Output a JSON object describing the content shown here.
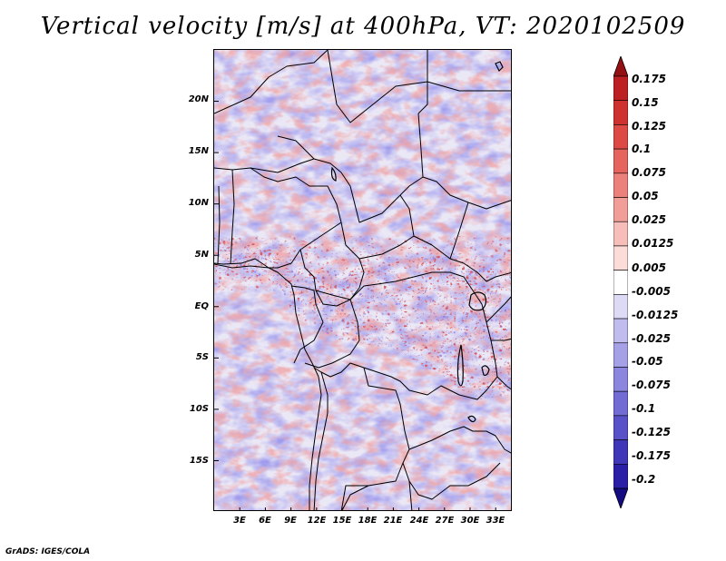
{
  "title": "Vertical velocity [m/s] at 400hPa, VT: 2020102509",
  "credit": "GrADS: IGES/COLA",
  "map": {
    "lon_range": [
      0,
      35
    ],
    "lat_range": [
      -20,
      25
    ],
    "lat_ticks": [
      "20N",
      "15N",
      "10N",
      "5N",
      "EQ",
      "5S",
      "10S",
      "15S"
    ],
    "lat_tick_values": [
      20,
      15,
      10,
      5,
      0,
      -5,
      -10,
      -15
    ],
    "lon_ticks": [
      "3E",
      "6E",
      "9E",
      "12E",
      "15E",
      "18E",
      "21E",
      "24E",
      "27E",
      "30E",
      "33E"
    ],
    "lon_tick_values": [
      3,
      6,
      9,
      12,
      15,
      18,
      21,
      24,
      27,
      30,
      33
    ]
  },
  "colorbar": {
    "labels": [
      "0.175",
      "0.15",
      "0.125",
      "0.1",
      "0.075",
      "0.05",
      "0.025",
      "0.0125",
      "0.005",
      "-0.005",
      "-0.0125",
      "-0.025",
      "-0.05",
      "-0.075",
      "-0.1",
      "-0.125",
      "-0.175",
      "-0.2"
    ],
    "colors": [
      "#a8181a",
      "#bc2022",
      "#cf3030",
      "#dd4a46",
      "#e5645e",
      "#ec807a",
      "#f19e98",
      "#f6bdb9",
      "#fbdcd9",
      "#ffffff",
      "#dcdaf5",
      "#c0bdee",
      "#a6a1e6",
      "#8c86de",
      "#726bd4",
      "#5851c8",
      "#3f37b8",
      "#2a1fa6",
      "#1c1290"
    ],
    "top_arrow_color": "#951012",
    "bottom_arrow_color": "#140b82"
  }
}
